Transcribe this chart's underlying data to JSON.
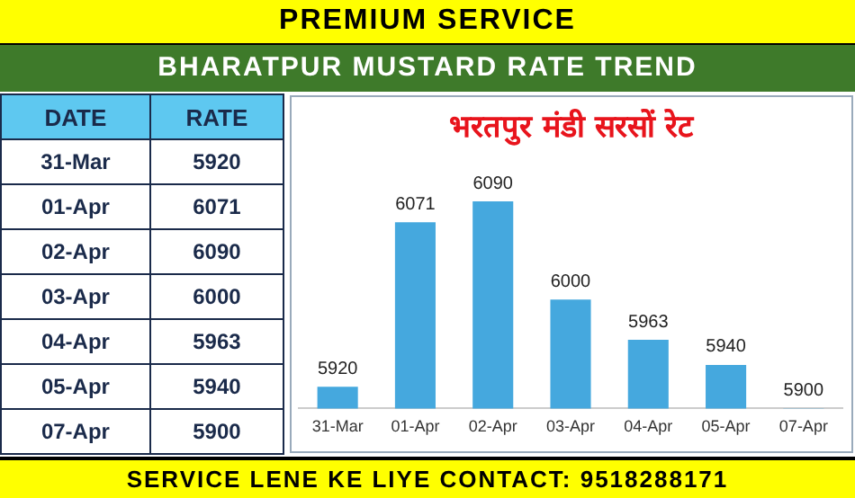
{
  "chart_data": [
    {
      "type": "other",
      "title": "PREMIUM SERVICE",
      "subtitle": "BHARATPUR MUSTARD RATE TREND",
      "xlabel": "DATE",
      "ylabel": "RATE",
      "annotations": [
        "SERVICE LENE KE LIYE CONTACT: 9518288171"
      ],
      "categories": [
        "31-Mar",
        "01-Apr",
        "02-Apr",
        "03-Apr",
        "04-Apr",
        "05-Apr",
        "07-Apr"
      ],
      "values": [
        5920,
        6071,
        6090,
        6000,
        5963,
        5940,
        5900
      ],
      "data_labels": true
    },
    {
      "type": "bar",
      "title": "भरतपुर मंडी सरसों रेट",
      "categories": [
        "31-Mar",
        "01-Apr",
        "02-Apr",
        "03-Apr",
        "04-Apr",
        "05-Apr",
        "07-Apr"
      ],
      "values": [
        5920,
        6071,
        6090,
        6000,
        5963,
        5940,
        5900
      ],
      "color": "#45a8de",
      "data_labels": true
    }
  ]
}
